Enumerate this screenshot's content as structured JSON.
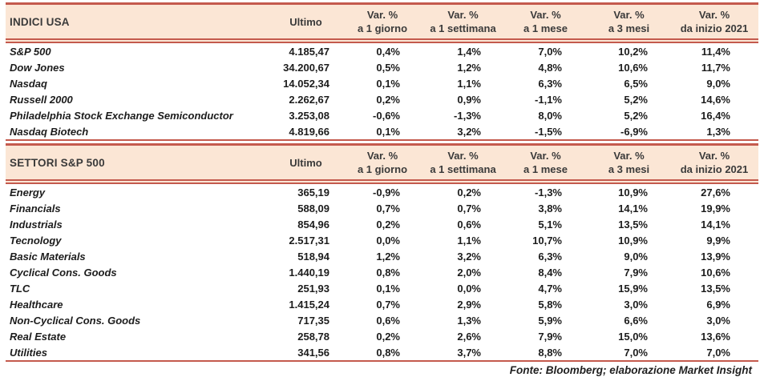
{
  "header": {
    "ultimo": "Ultimo",
    "var_label": "Var. %",
    "periods": [
      "a 1 giorno",
      "a 1 settimana",
      "a 1 mese",
      "a 3 mesi",
      "da inizio 2021"
    ]
  },
  "chart_data": [
    {
      "type": "table",
      "title": "INDICI USA",
      "columns": [
        "Ultimo",
        "Var. % a 1 giorno",
        "Var. % a 1 settimana",
        "Var. % a 1 mese",
        "Var. % a 3 mesi",
        "Var. % da inizio 2021"
      ],
      "rows": [
        [
          "S&P 500",
          "4.185,47",
          "0,4%",
          "1,4%",
          "7,0%",
          "10,2%",
          "11,4%"
        ],
        [
          "Dow Jones",
          "34.200,67",
          "0,5%",
          "1,2%",
          "4,8%",
          "10,6%",
          "11,7%"
        ],
        [
          "Nasdaq",
          "14.052,34",
          "0,1%",
          "1,1%",
          "6,3%",
          "6,5%",
          "9,0%"
        ],
        [
          "Russell 2000",
          "2.262,67",
          "0,2%",
          "0,9%",
          "-1,1%",
          "5,2%",
          "14,6%"
        ],
        [
          "Philadelphia Stock Exchange Semiconductor",
          "3.253,08",
          "-0,6%",
          "-1,3%",
          "8,0%",
          "5,2%",
          "16,4%"
        ],
        [
          "Nasdaq Biotech",
          "4.819,66",
          "0,1%",
          "3,2%",
          "-1,5%",
          "-6,9%",
          "1,3%"
        ]
      ]
    },
    {
      "type": "table",
      "title": "SETTORI S&P 500",
      "columns": [
        "Ultimo",
        "Var. % a 1 giorno",
        "Var. % a 1 settimana",
        "Var. % a 1 mese",
        "Var. % a 3 mesi",
        "Var. % da inizio 2021"
      ],
      "rows": [
        [
          "Energy",
          "365,19",
          "-0,9%",
          "0,2%",
          "-1,3%",
          "10,9%",
          "27,6%"
        ],
        [
          "Financials",
          "588,09",
          "0,7%",
          "0,7%",
          "3,8%",
          "14,1%",
          "19,9%"
        ],
        [
          "Industrials",
          "854,96",
          "0,2%",
          "0,6%",
          "5,1%",
          "13,5%",
          "14,1%"
        ],
        [
          "Tecnology",
          "2.517,31",
          "0,0%",
          "1,1%",
          "10,7%",
          "10,9%",
          "9,9%"
        ],
        [
          "Basic Materials",
          "518,94",
          "1,2%",
          "3,2%",
          "6,3%",
          "9,0%",
          "13,9%"
        ],
        [
          "Cyclical Cons. Goods",
          "1.440,19",
          "0,8%",
          "2,0%",
          "8,4%",
          "7,9%",
          "10,6%"
        ],
        [
          "TLC",
          "251,93",
          "0,1%",
          "0,0%",
          "4,7%",
          "15,9%",
          "13,5%"
        ],
        [
          "Healthcare",
          "1.415,24",
          "0,7%",
          "2,9%",
          "5,8%",
          "3,0%",
          "6,9%"
        ],
        [
          "Non-Cyclical Cons. Goods",
          "717,35",
          "0,6%",
          "1,3%",
          "5,9%",
          "6,6%",
          "3,0%"
        ],
        [
          "Real Estate",
          "258,78",
          "0,2%",
          "2,6%",
          "7,9%",
          "15,0%",
          "13,6%"
        ],
        [
          "Utilities",
          "341,56",
          "0,8%",
          "3,7%",
          "8,8%",
          "7,0%",
          "7,0%"
        ]
      ]
    }
  ],
  "footer": "Fonte: Bloomberg; elaborazione Market Insight",
  "colors": {
    "header_bg": "#fbe6d5",
    "line": "#c45a4d",
    "text": "#1c1c1c"
  }
}
